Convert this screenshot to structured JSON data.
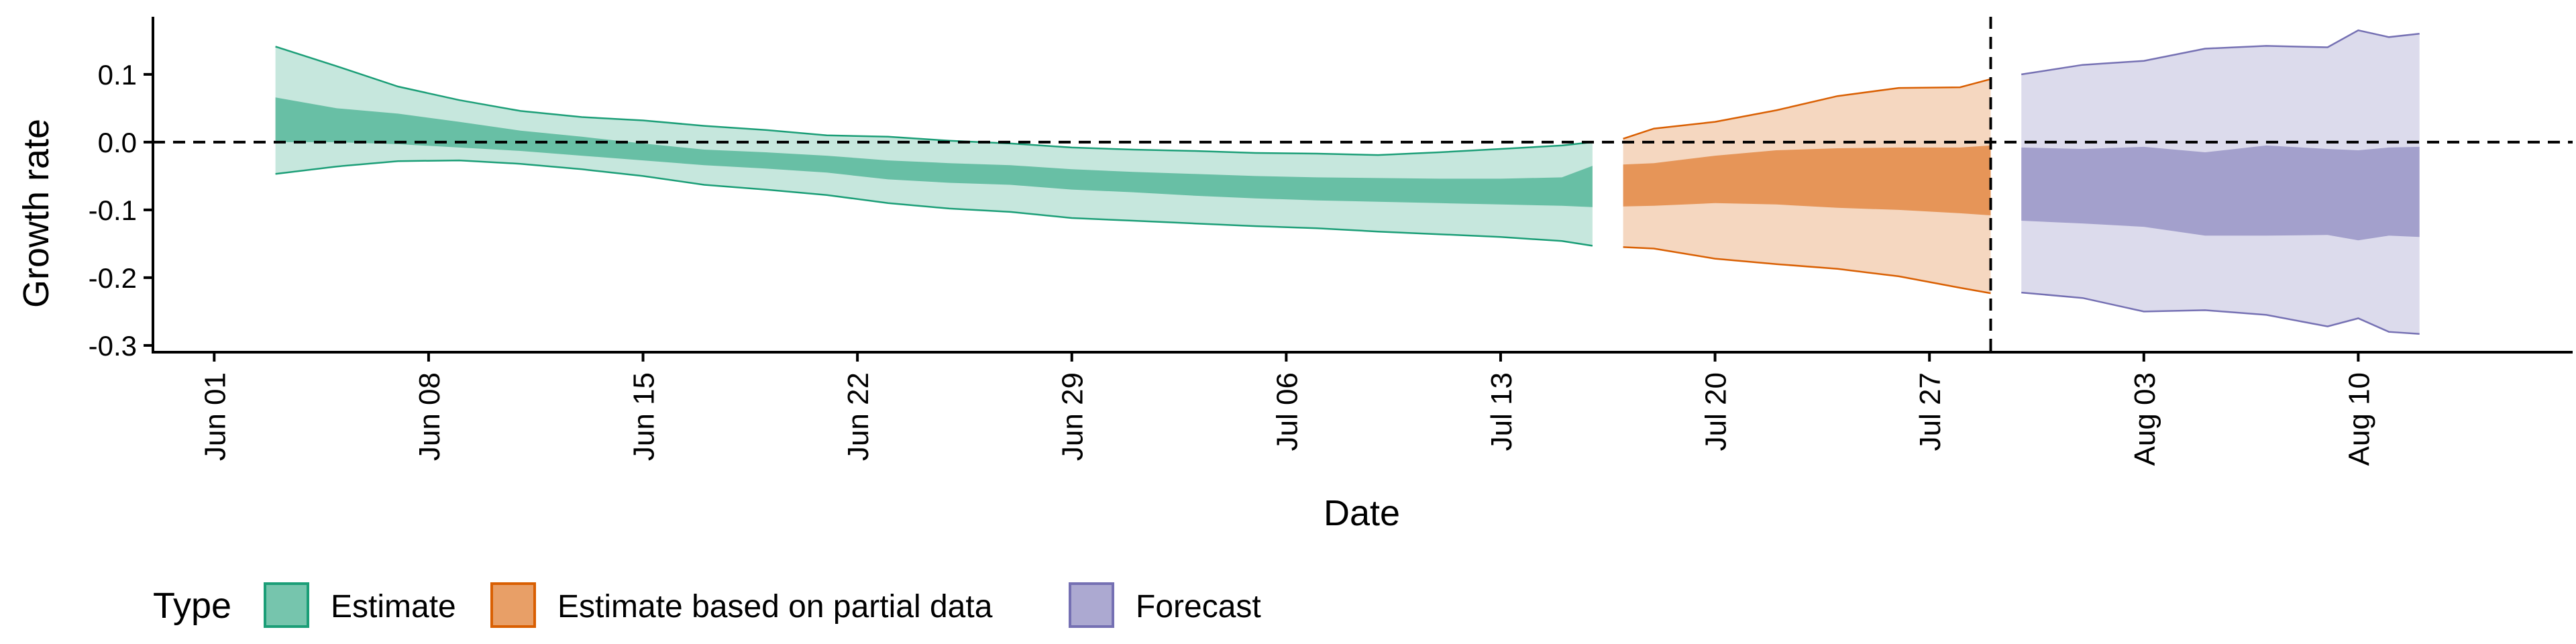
{
  "chart_data": {
    "type": "area",
    "xlabel": "Date",
    "ylabel": "Growth rate",
    "x_ticks": [
      "Jun 01",
      "Jun 08",
      "Jun 15",
      "Jun 22",
      "Jun 29",
      "Jul 06",
      "Jul 13",
      "Jul 20",
      "Jul 27",
      "Aug 03",
      "Aug 10"
    ],
    "y_ticks": [
      "0.1",
      "0.0",
      "-0.1",
      "-0.2",
      "-0.3"
    ],
    "xlim": [
      "2020-05-30",
      "2020-08-17"
    ],
    "ylim": [
      -0.31,
      0.185
    ],
    "reference_line_y": 0,
    "forecast_start_date": "2020-07-29",
    "legend": {
      "title": "Type",
      "position": "bottom-left",
      "items": [
        "Estimate",
        "Estimate based on partial data",
        "Forecast"
      ]
    },
    "colors": {
      "Estimate": "#1b9e77",
      "Estimate based on partial data": "#d95f02",
      "Forecast": "#7570b3"
    },
    "series": [
      {
        "name": "Estimate",
        "points": [
          {
            "x": "2020-06-03",
            "lo90": -0.047,
            "lo50": 0.0,
            "hi50": 0.066,
            "hi90": 0.141
          },
          {
            "x": "2020-06-05",
            "lo90": -0.036,
            "lo50": 0.0,
            "hi50": 0.05,
            "hi90": 0.112
          },
          {
            "x": "2020-06-07",
            "lo90": -0.028,
            "lo50": -0.003,
            "hi50": 0.042,
            "hi90": 0.082
          },
          {
            "x": "2020-06-09",
            "lo90": -0.027,
            "lo50": -0.008,
            "hi50": 0.03,
            "hi90": 0.062
          },
          {
            "x": "2020-06-11",
            "lo90": -0.032,
            "lo50": -0.013,
            "hi50": 0.017,
            "hi90": 0.046
          },
          {
            "x": "2020-06-13",
            "lo90": -0.04,
            "lo50": -0.02,
            "hi50": 0.008,
            "hi90": 0.037
          },
          {
            "x": "2020-06-15",
            "lo90": -0.05,
            "lo50": -0.027,
            "hi50": -0.002,
            "hi90": 0.032
          },
          {
            "x": "2020-06-17",
            "lo90": -0.063,
            "lo50": -0.034,
            "hi50": -0.011,
            "hi90": 0.024
          },
          {
            "x": "2020-06-19",
            "lo90": -0.07,
            "lo50": -0.039,
            "hi50": -0.015,
            "hi90": 0.018
          },
          {
            "x": "2020-06-21",
            "lo90": -0.078,
            "lo50": -0.045,
            "hi50": -0.02,
            "hi90": 0.01
          },
          {
            "x": "2020-06-23",
            "lo90": -0.09,
            "lo50": -0.055,
            "hi50": -0.027,
            "hi90": 0.008
          },
          {
            "x": "2020-06-25",
            "lo90": -0.098,
            "lo50": -0.06,
            "hi50": -0.031,
            "hi90": 0.002
          },
          {
            "x": "2020-06-27",
            "lo90": -0.103,
            "lo50": -0.063,
            "hi50": -0.034,
            "hi90": -0.002
          },
          {
            "x": "2020-06-29",
            "lo90": -0.112,
            "lo50": -0.07,
            "hi50": -0.04,
            "hi90": -0.008
          },
          {
            "x": "2020-07-01",
            "lo90": -0.116,
            "lo50": -0.074,
            "hi50": -0.044,
            "hi90": -0.011
          },
          {
            "x": "2020-07-03",
            "lo90": -0.12,
            "lo50": -0.079,
            "hi50": -0.047,
            "hi90": -0.013
          },
          {
            "x": "2020-07-05",
            "lo90": -0.124,
            "lo50": -0.083,
            "hi50": -0.05,
            "hi90": -0.016
          },
          {
            "x": "2020-07-07",
            "lo90": -0.127,
            "lo50": -0.086,
            "hi50": -0.052,
            "hi90": -0.017
          },
          {
            "x": "2020-07-09",
            "lo90": -0.132,
            "lo50": -0.088,
            "hi50": -0.053,
            "hi90": -0.019
          },
          {
            "x": "2020-07-11",
            "lo90": -0.136,
            "lo50": -0.09,
            "hi50": -0.054,
            "hi90": -0.015
          },
          {
            "x": "2020-07-13",
            "lo90": -0.14,
            "lo50": -0.092,
            "hi50": -0.054,
            "hi90": -0.01
          },
          {
            "x": "2020-07-15",
            "lo90": -0.146,
            "lo50": -0.094,
            "hi50": -0.052,
            "hi90": -0.005
          },
          {
            "x": "2020-07-16",
            "lo90": -0.153,
            "lo50": -0.096,
            "hi50": -0.035,
            "hi90": 0.0
          }
        ]
      },
      {
        "name": "Estimate based on partial data",
        "points": [
          {
            "x": "2020-07-17",
            "lo90": -0.155,
            "lo50": -0.095,
            "hi50": -0.033,
            "hi90": 0.005
          },
          {
            "x": "2020-07-18",
            "lo90": -0.157,
            "lo50": -0.094,
            "hi50": -0.031,
            "hi90": 0.02
          },
          {
            "x": "2020-07-20",
            "lo90": -0.172,
            "lo50": -0.09,
            "hi50": -0.02,
            "hi90": 0.03
          },
          {
            "x": "2020-07-22",
            "lo90": -0.18,
            "lo50": -0.092,
            "hi50": -0.012,
            "hi90": 0.047
          },
          {
            "x": "2020-07-24",
            "lo90": -0.187,
            "lo50": -0.097,
            "hi50": -0.009,
            "hi90": 0.068
          },
          {
            "x": "2020-07-26",
            "lo90": -0.198,
            "lo50": -0.1,
            "hi50": -0.008,
            "hi90": 0.08
          },
          {
            "x": "2020-07-28",
            "lo90": -0.215,
            "lo50": -0.105,
            "hi50": -0.008,
            "hi90": 0.081
          },
          {
            "x": "2020-07-29",
            "lo90": -0.223,
            "lo50": -0.108,
            "hi50": -0.005,
            "hi90": 0.093
          }
        ]
      },
      {
        "name": "Forecast",
        "points": [
          {
            "x": "2020-07-30",
            "lo90": -0.222,
            "lo50": -0.116,
            "hi50": -0.008,
            "hi90": 0.1
          },
          {
            "x": "2020-08-01",
            "lo90": -0.23,
            "lo50": -0.12,
            "hi50": -0.01,
            "hi90": 0.114
          },
          {
            "x": "2020-08-03",
            "lo90": -0.25,
            "lo50": -0.125,
            "hi50": -0.007,
            "hi90": 0.12
          },
          {
            "x": "2020-08-05",
            "lo90": -0.248,
            "lo50": -0.138,
            "hi50": -0.015,
            "hi90": 0.138
          },
          {
            "x": "2020-08-07",
            "lo90": -0.255,
            "lo50": -0.138,
            "hi50": -0.005,
            "hi90": 0.142
          },
          {
            "x": "2020-08-09",
            "lo90": -0.272,
            "lo50": -0.137,
            "hi50": -0.01,
            "hi90": 0.14
          },
          {
            "x": "2020-08-10",
            "lo90": -0.26,
            "lo50": -0.145,
            "hi50": -0.012,
            "hi90": 0.165
          },
          {
            "x": "2020-08-11",
            "lo90": -0.28,
            "lo50": -0.138,
            "hi50": -0.008,
            "hi90": 0.155
          },
          {
            "x": "2020-08-12",
            "lo90": -0.283,
            "lo50": -0.14,
            "hi50": -0.007,
            "hi90": 0.16
          }
        ]
      }
    ]
  }
}
